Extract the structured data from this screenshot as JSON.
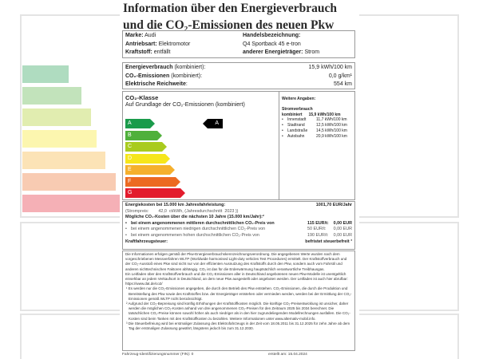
{
  "title": [
    "Information über den Energieverbrauch",
    "und die CO₂-Emissionen des neuen Pkw"
  ],
  "vehicle": {
    "marke_label": "Marke:",
    "marke": "Audi",
    "antrieb_label": "Antriebsart:",
    "antrieb": "Elektromotor",
    "kraftstoff_label": "Kraftstoff:",
    "kraftstoff": "entfällt",
    "handel_label": "Handelsbezeichnung:",
    "handel": "Q4 Sportback 45 e-tron",
    "energietraeger_label": "anderer Energieträger:",
    "energietraeger": "Strom"
  },
  "consumption": {
    "energy_label": "Energieverbrauch",
    "energy_qual": "(kombiniert):",
    "energy_value": "15,9 kWh/100 km",
    "co2_label": "CO₂-Emissionen",
    "co2_qual": "(kombiniert):",
    "co2_value": "0,0 g/km¹",
    "range_label": "Elektrische Reichweite",
    "range_colon": ":",
    "range_value": "554 km"
  },
  "co2_class": {
    "heading": "CO₂-Klasse",
    "subheading": "Auf Grundlage der CO₂-Emissionen (kombiniert)",
    "classes": [
      {
        "label": "A",
        "color": "#1a9b4b"
      },
      {
        "label": "B",
        "color": "#4fb03b"
      },
      {
        "label": "C",
        "color": "#a9cb1e"
      },
      {
        "label": "D",
        "color": "#f6e61b"
      },
      {
        "label": "E",
        "color": "#f5b02d"
      },
      {
        "label": "F",
        "color": "#ec6a21"
      },
      {
        "label": "G",
        "color": "#e31c2d"
      }
    ],
    "current": "A"
  },
  "further": {
    "heading": "Weitere Angaben:",
    "strom_label": "Stromverbrauch",
    "kombiniert_label": "kombiniert",
    "kombiniert_value": "15,9 kWh/100 km",
    "items": [
      {
        "label": "Innenstadt",
        "value": "11,7 kWh/100 km"
      },
      {
        "label": "Stadtrand",
        "value": "12,5 kWh/100 km"
      },
      {
        "label": "Landstraße",
        "value": "14,5 kWh/100 km"
      },
      {
        "label": "Autobahn",
        "value": "20,9 kWh/100 km"
      }
    ]
  },
  "costs": {
    "energy_cost_label": "Energiekosten bei 15.000 km Jahresfahrleistung:",
    "energy_cost_value": "1001,70 EUR/Jahr",
    "strompreis": "(Strompreis:        42,0  ct/kWh, (Jahresdurchschnitt  2023 ))",
    "co2_cost_heading": "Mögliche CO₂-Kosten über die nächsten 10 Jahre (15.000 km/Jahr):²",
    "rows": [
      {
        "text": "bei einem angenommenen mittleren durchschnittlichen CO₂-Preis von",
        "price": "115  EUR/t:",
        "value": "0,00 EUR"
      },
      {
        "text": "bei einem angenommenen niedrigen durchschnittlichen CO₂-Preis von",
        "price": "50  EUR/t:",
        "value": "0,00 EUR"
      },
      {
        "text": "bei einem angenommenen hohen durchschnittlichen CO₂-Preis von",
        "price": "190  EUR/t:",
        "value": "0,00 EUR"
      }
    ],
    "tax_label": "Kraftfahrzeugsteuer:",
    "tax_value": "befristet steuerbefreit ³"
  },
  "notes": {
    "p1": "Die Informationen erfolgen gemäß der Pkw-Energieverbrauchskennzeichnungsverordnung. Die angegebenen Werte wurden nach dem vorgeschriebenen Messverfahren WLTP (Worldwide harmonised Light-duty vehicles Test Procedures) ermittelt. Der Kraftstoffverbrauch und der CO₂-Ausstoß eines Pkw sind nicht nur von der effizienten Ausnutzung des Kraftstoffs durch den Pkw, sondern auch vom Fahrstil und anderen nichttechnischen Faktoren abhängig. CO₂ ist das für die Erderwärmung hauptsächlich verantwortliche Treibhausgas.",
    "p2": "Ein Leitfaden über den Kraftstoffverbrauch und die CO₂-Emissionen aller in Deutschland angebotenen neuen Pkw-Modelle ist unentgeltlich einsehbar an jedem Verkaufsort in Deutschland, an dem neue Pkw ausgestellt oder angeboten werden. Der Leitfaden ist auch hier abrufbar:  https://www.dat.de/co2/",
    "fn1": "¹ Es werden nur die CO₂-Emissionen angegeben, die durch den Betrieb des Pkw entstehen. CO₂-Emissionen, die durch die Produktion und Bereitstellung des Pkw sowie des Kraftstoffes bzw. der Energieträger entstehen oder vermieden werden, werden bei der Ermittlung der CO₂-Emissionen gemäß WLTP nicht berücksichtigt.",
    "fn2": "² Aufgrund der CO₂-Bepreisung sind künftig Erhöhungen der Kraftstoffkosten möglich. Die künftige CO₂-Preisentwicklung ist unsicher, daher werden die möglichen CO₂-Kosten anhand von drei angenommenen CO₂-Preisen für den Zeitraum  2025  bis  2034  berechnet. Die tatsächlichen CO₂-Preise können sowohl höher als auch niedriger als in den hier zugrundeliegenden Modellrechnungen ausfallen. Die CO₂-Kosten sind beim Tanken mit den Kraftstoffkosten zu bezahlen. Weitere Informationen unter www.alternativ-mobil.info.",
    "fn3": "³ Die Steuerbefreiung wird bei erstmaliger Zulassung des Elektrofahrzeugs in der Zeit vom 18.05.2011 bis 31.12.2025 für zehn Jahre ab dem Tag der erstmaligen Zulassung gewährt, längstens jedoch bis zum 31.12.2030."
  },
  "footer": {
    "fin": "Fahrzeug-Identifizierungsnummer (FIN):  0",
    "date": "erstellt am:  15.04.2024"
  }
}
